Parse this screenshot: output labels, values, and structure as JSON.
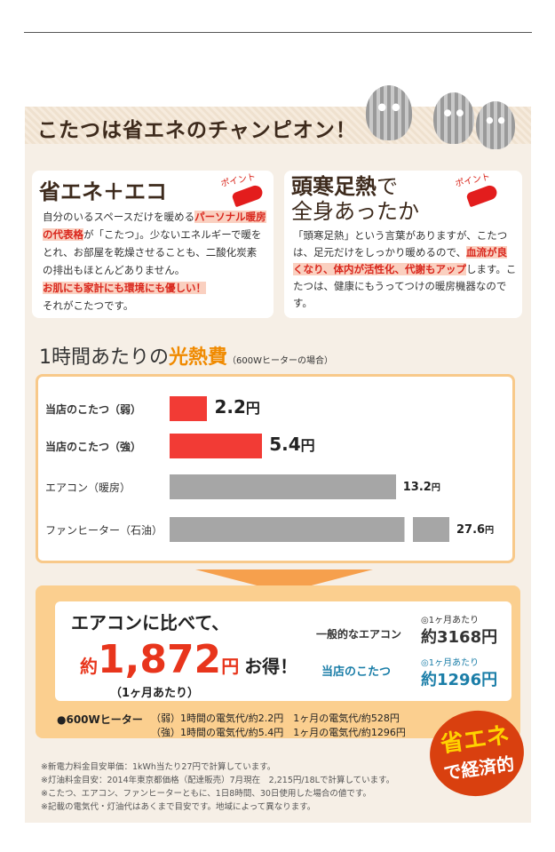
{
  "banner_title": "こたつは省エネのチャンピオン！",
  "point_label": "ポイント",
  "card_left": {
    "title": "省エネ＋エコ",
    "t1": "自分のいるスペースだけを暖める",
    "h1": "パーソナル暖房の代表格",
    "t2": "が「こたつ」。少ないエネルギーで暖をとれ、お部屋を乾燥させることも、二酸化炭素の排出もほとんどありません。",
    "h2": "お肌にも家計にも環境にも優しい！",
    "t3": "それがこたつです。"
  },
  "card_right": {
    "title_bold": "頭寒足熱",
    "title_rest": "で",
    "title2": "全身あったか",
    "t1": "「頭寒足熱」という言葉がありますが、こたつは、足元だけをしっかり暖めるので、",
    "h1": "血流が良くなり、体内が活性化、代謝もアップ",
    "t2": "します。こたつは、健康にもうってつけの暖房機器なのです。"
  },
  "section": {
    "pre": "1時間あたりの",
    "accent": "光熱費",
    "note": "（600Wヒーターの場合）"
  },
  "chart_data": {
    "type": "bar",
    "categories": [
      "当店のこたつ（弱）",
      "当店のこたつ（強）",
      "エアコン（暖房）",
      "ファンヒーター（石油）"
    ],
    "values": [
      2.2,
      5.4,
      13.2,
      27.6
    ],
    "labels": [
      "2.2",
      "5.4",
      "13.2",
      "27.6"
    ],
    "unit": "円",
    "colors": [
      "#f23b35",
      "#f23b35",
      "#a6a6a6",
      "#a6a6a6"
    ]
  },
  "result": {
    "headline": "エアコンに比べて、",
    "prefix": "約",
    "amount": "1,872",
    "unit": "円",
    "suffix": "お得！",
    "per": "（1ヶ月あたり）",
    "r1_label": "一般的なエアコン",
    "r1_per": "◎1ヶ月あたり",
    "r1_val": "約3168円",
    "r2_label": "当店のこたつ",
    "r2_per": "◎1ヶ月あたり",
    "r2_val": "約1296円",
    "heater": "●600Wヒーター",
    "l1": "（弱）1時間の電気代/約2.2円　1ヶ月の電気代/約528円",
    "l2": "（強）1時間の電気代/約5.4円　1ヶ月の電気代/約1296円"
  },
  "badge": {
    "l1": "省エネ",
    "l2": "で経済的"
  },
  "notes": [
    "※新電力料金目安単価：1kWh当たり27円で計算しています。",
    "※灯油料金目安：2014年東京都価格（配達販売）7月現在　2,215円/18Lで計算しています。",
    "※こたつ、エアコン、ファンヒーターともに、1日8時間、30日使用した場合の値です。",
    "※記載の電気代・灯油代はあくまで目安です。地域によって異なります。"
  ]
}
